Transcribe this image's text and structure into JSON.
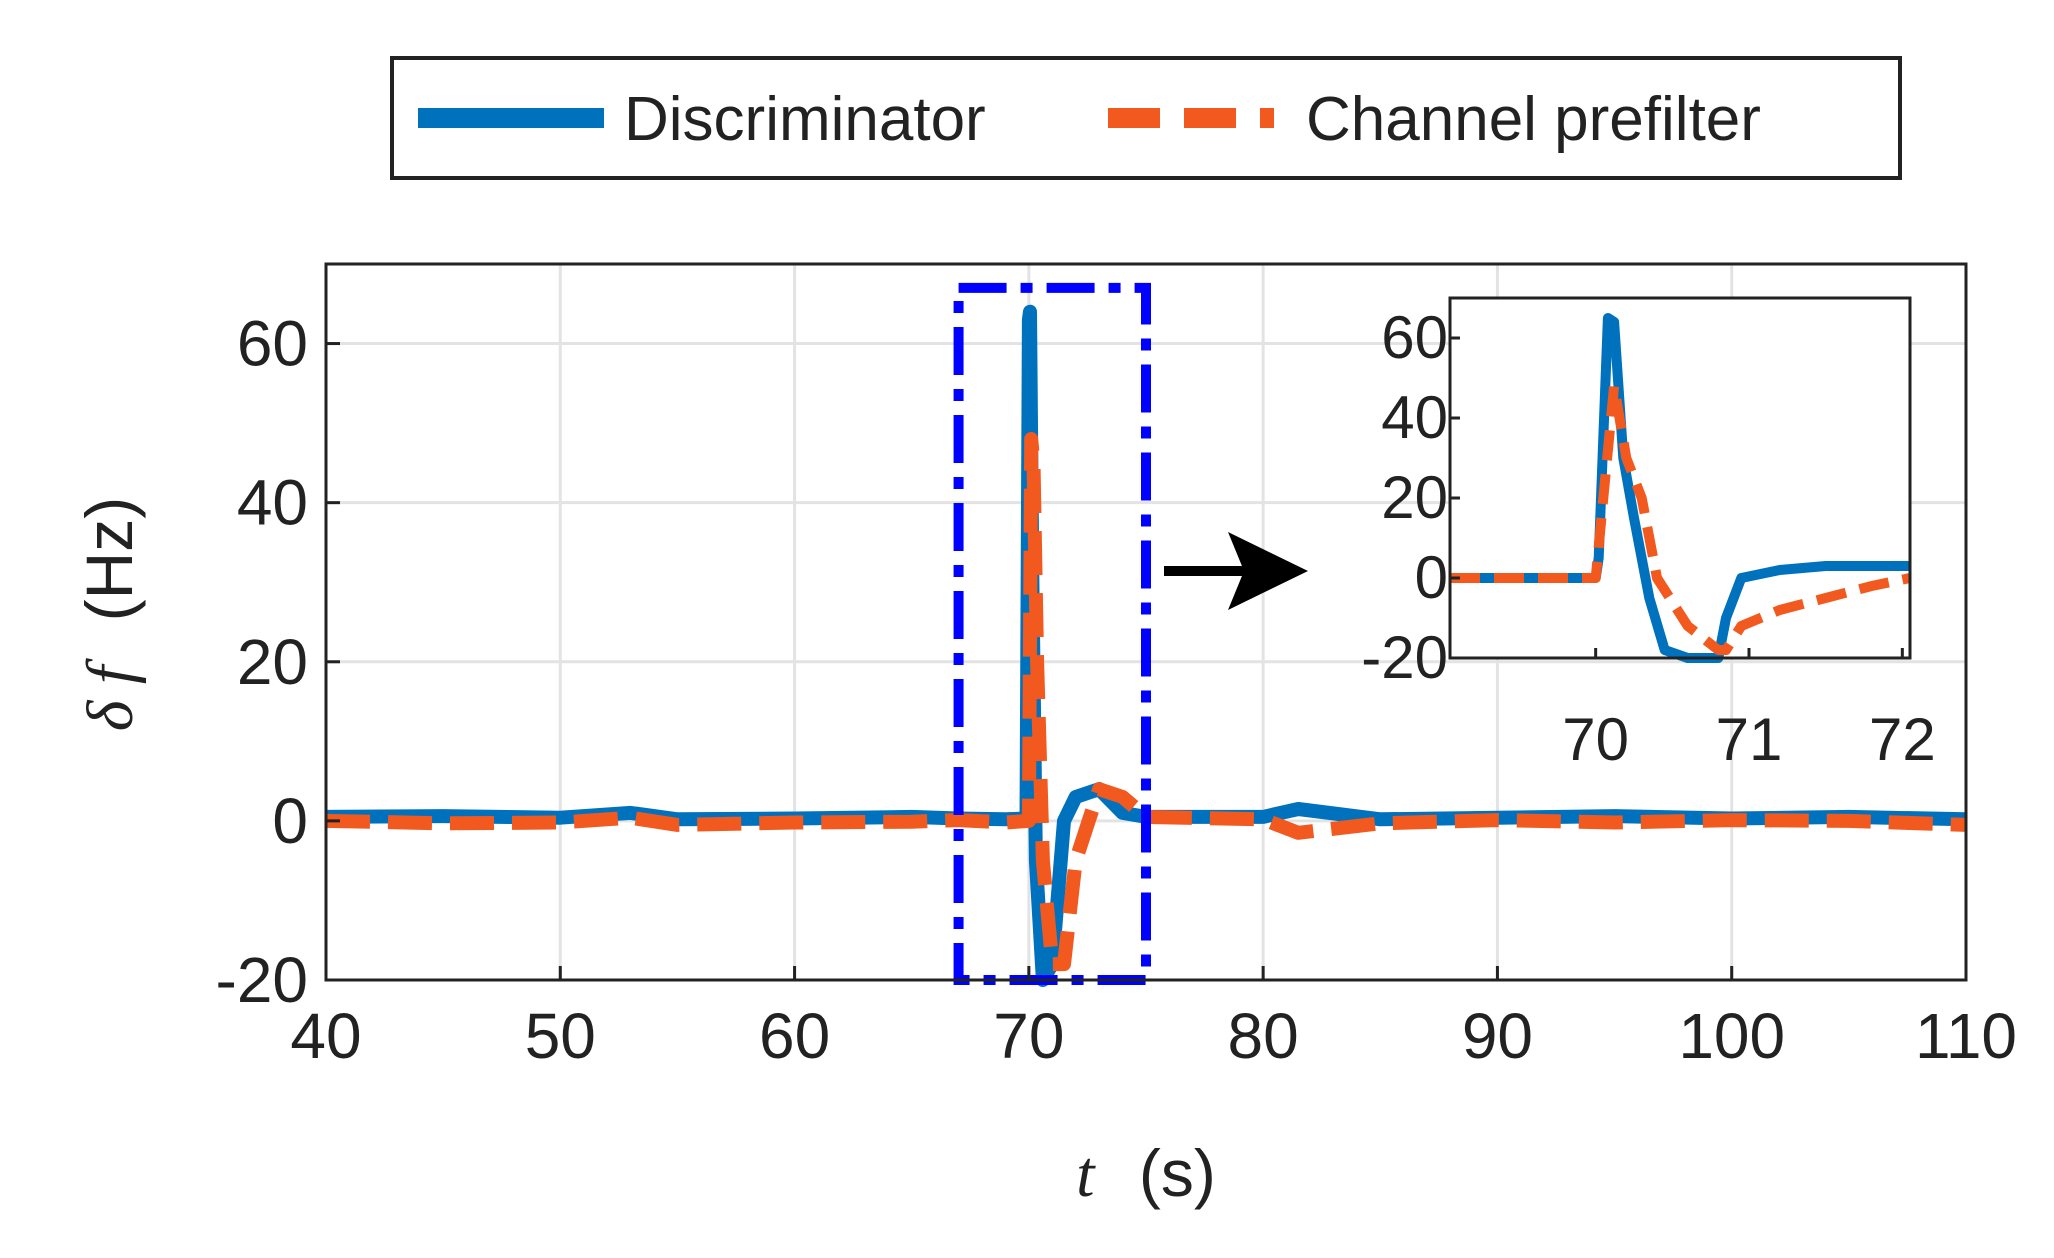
{
  "chart_data": [
    {
      "type": "line",
      "name": "main",
      "xlabel_symbol": "t",
      "xlabel_unit": "(s)",
      "ylabel_symbol": "δ f",
      "ylabel_unit": "(Hz)",
      "xlim": [
        40,
        110
      ],
      "ylim": [
        -20,
        70
      ],
      "xticks": [
        "40",
        "50",
        "60",
        "70",
        "80",
        "90",
        "100",
        "110"
      ],
      "yticks": [
        "-20",
        "0",
        "20",
        "40",
        "60"
      ],
      "grid": true,
      "highlight_box": {
        "x": [
          67,
          75
        ],
        "y": [
          -20,
          67
        ],
        "color": "#0000ff"
      },
      "series": [
        {
          "name": "Discriminator",
          "color": "#0072bd",
          "style": "solid",
          "x": [
            40,
            45,
            50,
            53,
            55,
            60,
            65,
            67,
            69,
            69.9,
            70.0,
            70.05,
            70.15,
            70.3,
            70.6,
            71.0,
            71.5,
            72.0,
            73.0,
            74.0,
            75.0,
            80,
            81.5,
            85,
            90,
            95,
            100,
            105,
            110
          ],
          "y": [
            0.5,
            0.6,
            0.4,
            1.0,
            0.2,
            0.3,
            0.5,
            0.3,
            0.2,
            0.3,
            63,
            64,
            30,
            -5,
            -20,
            -18,
            0,
            3,
            4,
            1,
            0.5,
            0.5,
            1.5,
            0.2,
            0.4,
            0.6,
            0.3,
            0.5,
            0.2
          ]
        },
        {
          "name": "Channel prefilter",
          "color": "#f2591e",
          "style": "dashed",
          "x": [
            40,
            45,
            50,
            53,
            55,
            60,
            65,
            67,
            69,
            70.0,
            70.1,
            70.2,
            70.35,
            70.6,
            71.0,
            71.5,
            72.0,
            73.0,
            74.0,
            75.0,
            80,
            81.5,
            85,
            90,
            95,
            100,
            105,
            110
          ],
          "y": [
            0,
            -0.3,
            -0.2,
            0.4,
            -0.5,
            -0.2,
            -0.1,
            0.1,
            -0.2,
            0,
            48,
            45,
            20,
            -5,
            -18,
            -18,
            -5,
            4,
            3,
            0.5,
            0.2,
            -1.5,
            -0.3,
            0.1,
            -0.2,
            0.1,
            0,
            -0.5
          ]
        }
      ]
    },
    {
      "type": "line",
      "name": "inset",
      "xlim": [
        69.05,
        72.05
      ],
      "ylim": [
        -20,
        70
      ],
      "xticks": [
        "70",
        "71",
        "72"
      ],
      "yticks": [
        "-20",
        "0",
        "20",
        "40",
        "60"
      ],
      "grid": false,
      "series": [
        {
          "name": "Discriminator",
          "color": "#0072bd",
          "style": "solid",
          "x": [
            69.05,
            69.6,
            70.0,
            70.02,
            70.08,
            70.12,
            70.18,
            70.25,
            70.35,
            70.45,
            70.6,
            70.8,
            70.85,
            70.95,
            71.2,
            71.5,
            71.8,
            72.05
          ],
          "y": [
            0,
            0,
            0,
            5,
            65,
            64,
            30,
            15,
            -5,
            -18,
            -20,
            -20,
            -10,
            0,
            2,
            3,
            3,
            3
          ]
        },
        {
          "name": "Channel prefilter",
          "color": "#f2591e",
          "style": "dashed",
          "x": [
            69.05,
            69.6,
            70.0,
            70.05,
            70.12,
            70.2,
            70.3,
            70.4,
            70.6,
            70.8,
            70.85,
            70.95,
            71.2,
            71.5,
            71.8,
            72.05
          ],
          "y": [
            0,
            0,
            0,
            20,
            48,
            30,
            20,
            0,
            -12,
            -18,
            -18,
            -12,
            -8,
            -5,
            -2,
            0
          ]
        }
      ]
    }
  ],
  "legend": {
    "items": [
      {
        "label": "Discriminator",
        "color": "#0072bd",
        "style": "solid"
      },
      {
        "label": "Channel prefilter",
        "color": "#f2591e",
        "style": "dashed"
      }
    ],
    "position": "top-center"
  },
  "arrow": {
    "color": "#000000"
  }
}
